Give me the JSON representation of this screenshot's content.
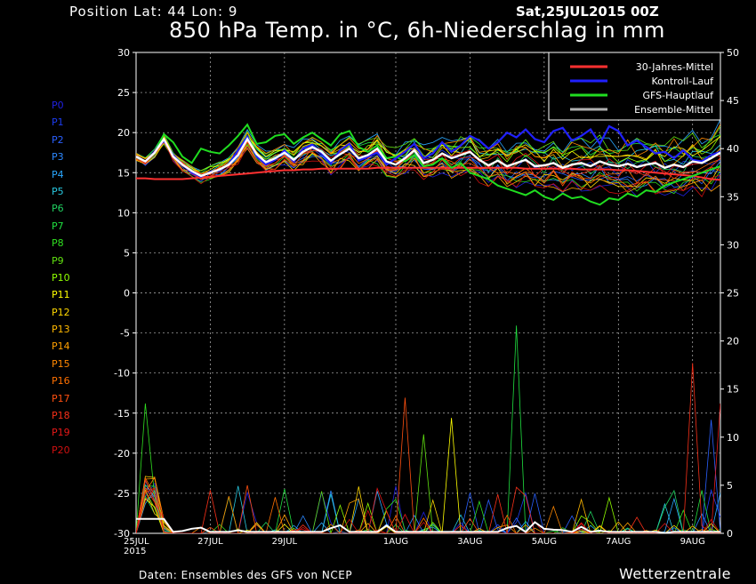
{
  "header": {
    "position": "Position   Lat: 44 Lon: 9",
    "date": "Sat,25JUL2015 00Z",
    "title": "850 hPa Temp. in °C, 6h-Niederschlag in mm"
  },
  "footer": {
    "source": "Daten: Ensembles des GFS von NCEP",
    "brand": "Wetterzentrale"
  },
  "members": [
    {
      "label": "P0",
      "color": "#2020e0"
    },
    {
      "label": "P1",
      "color": "#1c3cf0"
    },
    {
      "label": "P2",
      "color": "#2a60ff"
    },
    {
      "label": "P3",
      "color": "#2c88ff"
    },
    {
      "label": "P4",
      "color": "#2aa8ff"
    },
    {
      "label": "P5",
      "color": "#28c8e0"
    },
    {
      "label": "P6",
      "color": "#20d060"
    },
    {
      "label": "P7",
      "color": "#20e040"
    },
    {
      "label": "P8",
      "color": "#30e020"
    },
    {
      "label": "P9",
      "color": "#60e010"
    },
    {
      "label": "P10",
      "color": "#90ff00"
    },
    {
      "label": "P11",
      "color": "#ffff00"
    },
    {
      "label": "P12",
      "color": "#ffd800"
    },
    {
      "label": "P13",
      "color": "#ffb800"
    },
    {
      "label": "P14",
      "color": "#ffa000"
    },
    {
      "label": "P15",
      "color": "#ff8800"
    },
    {
      "label": "P16",
      "color": "#ff7000"
    },
    {
      "label": "P17",
      "color": "#ff5010"
    },
    {
      "label": "P18",
      "color": "#f83018"
    },
    {
      "label": "P19",
      "color": "#e81818"
    },
    {
      "label": "P20",
      "color": "#d01010"
    }
  ],
  "chart_data": {
    "type": "line",
    "title": "850 hPa Temp. in °C, 6h-Niederschlag in mm",
    "x_tick_labels": [
      "25JUL\n2015",
      "27JUL",
      "29JUL",
      "1AUG",
      "3AUG",
      "5AUG",
      "7AUG",
      "9AUG"
    ],
    "x_tick_index": [
      0,
      8,
      16,
      28,
      36,
      44,
      52,
      60
    ],
    "x_steps_per_day": 4,
    "n_steps": 64,
    "y_left": {
      "min": -30,
      "max": 30,
      "step": 5,
      "unit": "°C"
    },
    "y_right": {
      "min": 0,
      "max": 50,
      "step": 5,
      "unit": "mm"
    },
    "grid": true,
    "legend": {
      "placement": "top-right",
      "entries": [
        {
          "label": "30-Jahres-Mittel",
          "color": "#ff3030"
        },
        {
          "label": "Kontroll-Lauf",
          "color": "#2020ff"
        },
        {
          "label": "GFS-Hauptlauf",
          "color": "#20dd20"
        },
        {
          "label": "Ensemble-Mittel",
          "color": "#b0b0b0"
        }
      ]
    },
    "climatology": [
      14.3,
      14.3,
      14.2,
      14.2,
      14.2,
      14.2,
      14.3,
      14.4,
      14.5,
      14.6,
      14.7,
      14.8,
      14.9,
      15.0,
      15.1,
      15.2,
      15.3,
      15.3,
      15.4,
      15.4,
      15.5,
      15.5,
      15.5,
      15.5,
      15.5,
      15.5,
      15.6,
      15.6,
      15.6,
      15.6,
      15.6,
      15.6,
      15.6,
      15.6,
      15.6,
      15.6,
      15.6,
      15.6,
      15.6,
      15.6,
      15.6,
      15.6,
      15.5,
      15.5,
      15.5,
      15.5,
      15.5,
      15.5,
      15.4,
      15.4,
      15.4,
      15.4,
      15.3,
      15.3,
      15.2,
      15.1,
      15.0,
      14.9,
      14.8,
      14.7,
      14.6,
      14.4,
      14.2,
      14.1
    ],
    "ensemble_mean_temp": [
      17.0,
      16.4,
      17.5,
      19.2,
      17.0,
      16.0,
      15.2,
      14.6,
      15.0,
      15.4,
      16.0,
      17.2,
      19.2,
      17.3,
      16.3,
      16.8,
      17.5,
      16.6,
      17.6,
      18.2,
      17.6,
      16.5,
      17.3,
      18.0,
      16.8,
      17.2,
      18.0,
      16.4,
      16.0,
      16.8,
      17.8,
      16.2,
      16.6,
      17.4,
      16.8,
      17.2,
      17.6,
      16.6,
      15.9,
      16.5,
      15.8,
      16.2,
      16.6,
      15.8,
      15.9,
      16.2,
      15.6,
      16.0,
      16.2,
      15.8,
      16.4,
      16.0,
      15.8,
      16.1,
      15.7,
      16.0,
      16.2,
      15.6,
      16.0,
      15.7,
      16.4,
      16.2,
      16.8,
      17.5
    ],
    "control_temp": [
      17.0,
      16.4,
      17.6,
      19.0,
      17.2,
      16.0,
      15.0,
      14.5,
      15.1,
      15.3,
      16.1,
      17.8,
      19.5,
      17.0,
      16.0,
      16.6,
      17.8,
      16.4,
      18.0,
      18.5,
      17.4,
      16.2,
      17.8,
      18.6,
      16.5,
      17.0,
      17.5,
      16.0,
      16.8,
      17.6,
      18.6,
      16.8,
      17.4,
      18.8,
      17.6,
      18.4,
      19.6,
      19.0,
      18.0,
      18.8,
      20.0,
      19.4,
      20.4,
      19.2,
      18.8,
      20.2,
      20.6,
      19.0,
      19.6,
      20.4,
      18.6,
      20.8,
      20.2,
      18.4,
      19.0,
      18.2,
      17.4,
      17.6,
      16.8,
      17.8,
      16.6,
      16.4,
      17.2,
      17.6
    ],
    "gfs_main_temp": [
      17.0,
      16.4,
      17.4,
      19.8,
      18.8,
      17.0,
      16.2,
      18.0,
      17.6,
      17.4,
      18.4,
      19.6,
      21.0,
      18.6,
      18.8,
      19.6,
      19.8,
      18.6,
      19.4,
      20.0,
      19.2,
      18.4,
      19.8,
      20.2,
      18.2,
      17.6,
      18.4,
      16.8,
      17.0,
      16.4,
      17.2,
      15.8,
      16.0,
      16.8,
      15.6,
      16.2,
      15.0,
      14.6,
      14.2,
      13.4,
      13.0,
      12.6,
      12.2,
      12.8,
      12.0,
      11.6,
      12.4,
      11.8,
      12.0,
      11.4,
      11.0,
      11.8,
      11.6,
      12.4,
      12.0,
      12.8,
      12.6,
      13.4,
      13.8,
      14.2,
      14.6,
      15.0,
      15.4,
      15.8
    ],
    "precip_spikes_mm": [
      {
        "step": 1,
        "value": 13.5,
        "member": "P8"
      },
      {
        "step": 2,
        "value": 5.8,
        "member": "P12"
      },
      {
        "step": 29,
        "value": 14.1,
        "member": "P17"
      },
      {
        "step": 34,
        "value": 12.0,
        "member": "P11"
      },
      {
        "step": 31,
        "value": 10.3,
        "member": "P9"
      },
      {
        "step": 41,
        "value": 21.6,
        "member": "P7"
      },
      {
        "step": 60,
        "value": 17.7,
        "member": "P18"
      },
      {
        "step": 62,
        "value": 11.8,
        "member": "P2"
      },
      {
        "step": 63,
        "value": 13.5,
        "member": "P19"
      }
    ]
  }
}
